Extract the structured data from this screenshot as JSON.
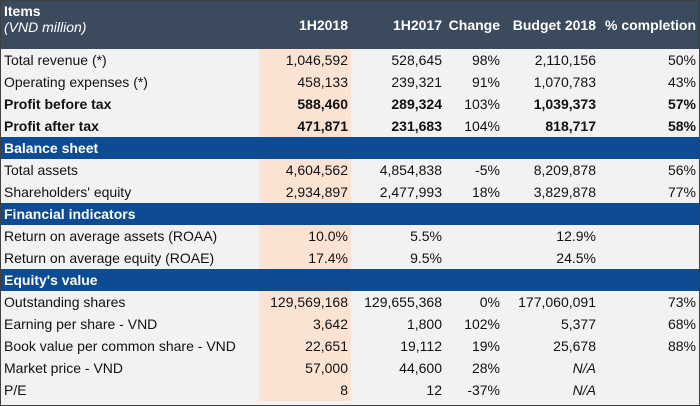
{
  "header": {
    "items": "Items",
    "unit": "(VND million)",
    "cols": [
      "1H2018",
      "1H2017",
      "Change",
      "Budget 2018",
      "% completion"
    ]
  },
  "colors": {
    "header_bg": "#3c4a5d",
    "band_bg": "#0d4c92",
    "highlight": "#fbe3d4",
    "row_bg": "#f2f2f2"
  },
  "sections": [
    {
      "title": "",
      "rows": [
        {
          "label": "Total revenue (*)",
          "v": [
            "1,046,592",
            "528,645",
            "98%",
            "2,110,156",
            "50%"
          ]
        },
        {
          "label": "Operating expenses (*)",
          "v": [
            "458,133",
            "239,321",
            "91%",
            "1,070,783",
            "43%"
          ]
        },
        {
          "label": "Profit before tax",
          "bold": true,
          "v": [
            "588,460",
            "289,324",
            "103%",
            "1,039,373",
            "57%"
          ]
        },
        {
          "label": "Profit after tax",
          "bold": true,
          "v": [
            "471,871",
            "231,683",
            "104%",
            "818,717",
            "58%"
          ]
        }
      ]
    },
    {
      "title": "Balance sheet",
      "rows": [
        {
          "label": "Total assets",
          "v": [
            "4,604,562",
            "4,854,838",
            "-5%",
            "8,209,878",
            "56%"
          ]
        },
        {
          "label": "Shareholders' equity",
          "v": [
            "2,934,897",
            "2,477,993",
            "18%",
            "3,829,878",
            "77%"
          ]
        }
      ]
    },
    {
      "title": "Financial indicators",
      "rows": [
        {
          "label": "Return on average assets (ROAA)",
          "v": [
            "10.0%",
            "5.5%",
            "",
            "12.9%",
            ""
          ]
        },
        {
          "label": "Return on average equity (ROAE)",
          "v": [
            "17.4%",
            "9.5%",
            "",
            "24.5%",
            ""
          ]
        }
      ]
    },
    {
      "title": "Equity's value",
      "rows": [
        {
          "label": "Outstanding shares",
          "v": [
            "129,569,168",
            "129,655,368",
            "0%",
            "177,060,091",
            "73%"
          ]
        },
        {
          "label": "Earning per share  - VND",
          "v": [
            "3,642",
            "1,800",
            "102%",
            "5,377",
            "68%"
          ]
        },
        {
          "label": "Book value per common share - VND",
          "v": [
            "22,651",
            "19,112",
            "19%",
            "25,678",
            "88%"
          ]
        },
        {
          "label": "Market price - VND",
          "v": [
            "57,000",
            "44,600",
            "28%",
            "N/A",
            ""
          ]
        },
        {
          "label": "P/E",
          "v": [
            "8",
            "12",
            "-37%",
            "N/A",
            ""
          ]
        }
      ]
    }
  ]
}
